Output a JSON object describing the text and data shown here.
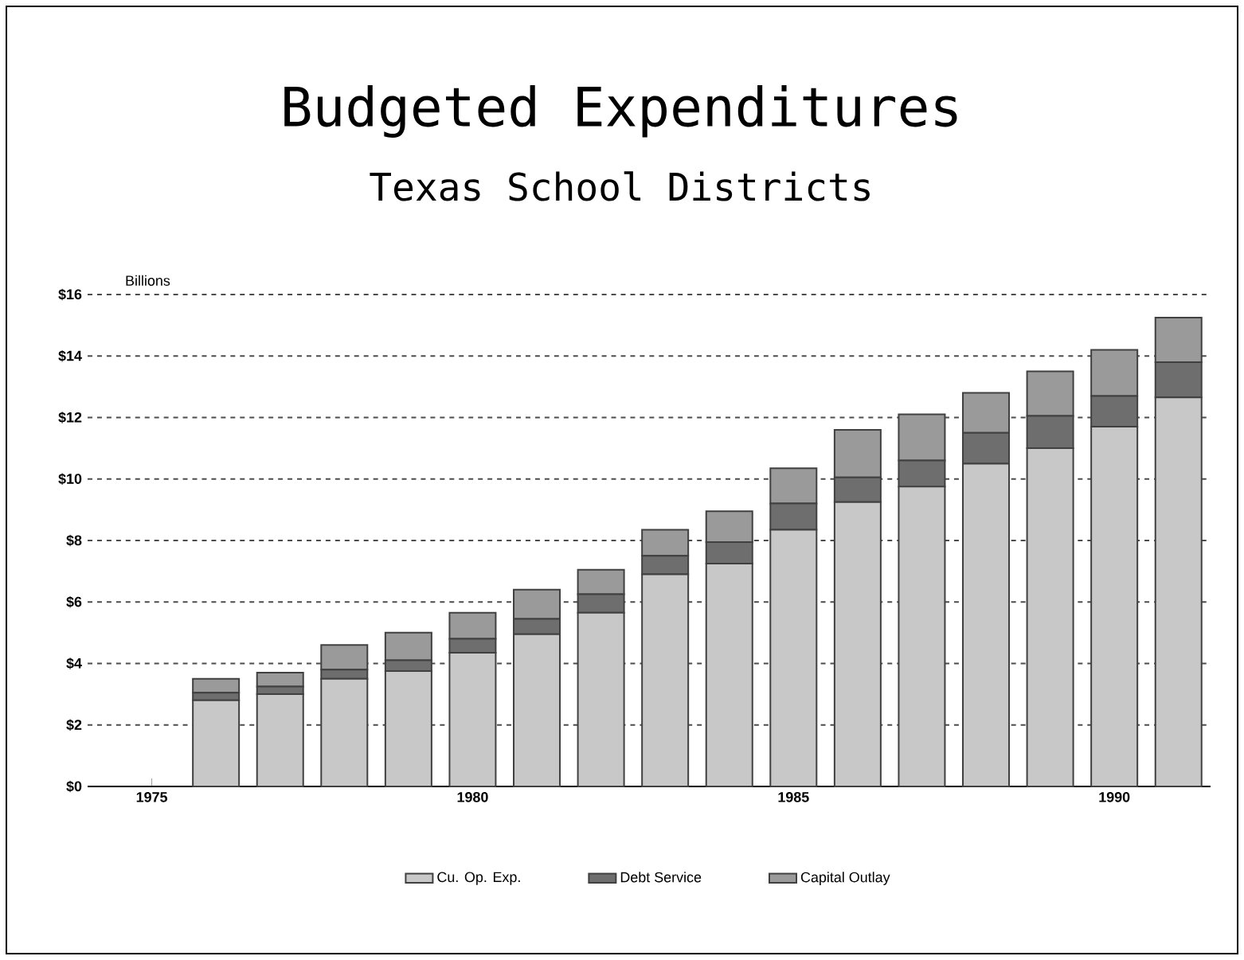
{
  "chart_data": {
    "type": "bar",
    "title": "Budgeted Expenditures",
    "subtitle": "Texas School Districts",
    "ylabel": "Billions",
    "x": [
      1976,
      1977,
      1978,
      1979,
      1980,
      1981,
      1982,
      1983,
      1984,
      1985,
      1986,
      1987,
      1988,
      1989,
      1990,
      1991
    ],
    "stacked": true,
    "series": [
      {
        "name": "Cu. Op. Exp.",
        "color": "#c8c8c8",
        "values": [
          2.8,
          3.0,
          3.5,
          3.75,
          4.35,
          4.95,
          5.65,
          6.9,
          7.25,
          8.35,
          9.25,
          9.75,
          10.5,
          11.0,
          11.7,
          12.65
        ]
      },
      {
        "name": "Debt Service",
        "color": "#6e6e6e",
        "values": [
          0.25,
          0.25,
          0.3,
          0.35,
          0.45,
          0.5,
          0.6,
          0.6,
          0.7,
          0.85,
          0.8,
          0.85,
          1.0,
          1.05,
          1.0,
          1.15
        ]
      },
      {
        "name": "Capital Outlay",
        "color": "#9a9a9a",
        "values": [
          0.45,
          0.45,
          0.8,
          0.9,
          0.85,
          0.95,
          0.8,
          0.85,
          1.0,
          1.15,
          1.55,
          1.5,
          1.3,
          1.45,
          1.5,
          1.45
        ]
      }
    ],
    "xlim": [
      1974,
      1991.5
    ],
    "xticks": [
      1975,
      {
        "value": 1976,
        "label": null
      },
      {
        "value": 1977,
        "label": null
      },
      {
        "value": 1978,
        "label": null
      },
      {
        "value": 1979,
        "label": null
      },
      1980,
      {
        "value": 1981,
        "label": null
      },
      {
        "value": 1982,
        "label": null
      },
      {
        "value": 1983,
        "label": null
      },
      {
        "value": 1984,
        "label": null
      },
      1985,
      {
        "value": 1986,
        "label": null
      },
      {
        "value": 1987,
        "label": null
      },
      {
        "value": 1988,
        "label": null
      },
      {
        "value": 1989,
        "label": null
      },
      1990,
      {
        "value": 1991,
        "label": null
      }
    ],
    "ylim": [
      0,
      16
    ],
    "yticks": [
      {
        "value": 0,
        "label": "$0"
      },
      {
        "value": 2,
        "label": "$2"
      },
      {
        "value": 4,
        "label": "$4"
      },
      {
        "value": 6,
        "label": "$6"
      },
      {
        "value": 8,
        "label": "$8"
      },
      {
        "value": 10,
        "label": "$10"
      },
      {
        "value": 12,
        "label": "$12"
      },
      {
        "value": 14,
        "label": "$14"
      },
      {
        "value": 16,
        "label": "$16"
      }
    ],
    "grid": "y",
    "legend": "bottom"
  }
}
